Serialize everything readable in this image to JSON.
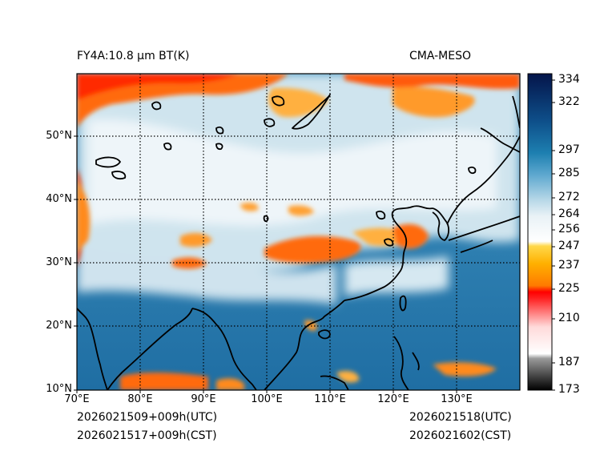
{
  "header": {
    "left_title": "FY4A:10.8 µm BT(K)",
    "right_title": "CMA-MESO"
  },
  "map": {
    "lat_labels": [
      "50°N",
      "40°N",
      "30°N",
      "20°N",
      "10°N"
    ],
    "lon_labels": [
      "70°E",
      "80°E",
      "90°E",
      "100°E",
      "110°E",
      "120°E",
      "130°E"
    ],
    "lat_values": [
      50,
      40,
      30,
      20,
      10
    ],
    "lon_values": [
      70,
      80,
      90,
      100,
      110,
      120,
      130
    ]
  },
  "colorbar": {
    "ticks": [
      "334",
      "322",
      "297",
      "285",
      "272",
      "264",
      "256",
      "247",
      "237",
      "225",
      "210",
      "187",
      "173"
    ],
    "tick_values": [
      334,
      322,
      297,
      285,
      272,
      264,
      256,
      247,
      237,
      225,
      210,
      187,
      173
    ],
    "colors": {
      "cold": "#000000",
      "gray": "#9a9a9a",
      "white_low": "#ffffff",
      "red": "#ff0000",
      "orange": "#ff8c00",
      "yellow": "#ffd400",
      "white_mid": "#f2f6f8",
      "light_blue": "#a9cfe2",
      "blue": "#2a7fb0",
      "dark_blue": "#0b2d6a",
      "navy": "#041a4a"
    }
  },
  "footer": {
    "init_utc": "2026021509+009h(UTC)",
    "init_cst": "2026021517+009h(CST)",
    "valid_utc": "2026021518(UTC)",
    "valid_cst": "2026021602(CST)"
  }
}
